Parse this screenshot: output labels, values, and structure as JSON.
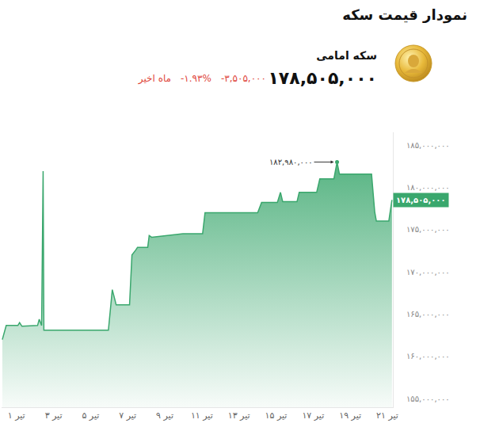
{
  "header": {
    "title": "نمودار قیمت سکه",
    "coin_name": "سکه امامی",
    "price": "۱۷۸,۵۰۵,۰۰۰",
    "change": "-۳,۵۰۵,۰۰۰",
    "change_percent": "-۱.۹۳%",
    "period": "ماه اخیر"
  },
  "chart_data": {
    "type": "line",
    "color": "#3aa76d",
    "grid": false,
    "x": [
      0.24,
      0.45,
      1.08,
      1.17,
      1.3,
      2.14,
      2.23,
      2.36,
      2.44,
      2.48,
      5.96,
      6.17,
      6.3,
      6.38,
      7.1,
      7.23,
      7.44,
      7.53,
      8.08,
      8.16,
      8.29,
      9.98,
      11.04,
      11.17,
      14.01,
      14.22,
      15.07,
      15.24,
      15.36,
      16.13,
      16.25,
      17.19,
      17.36,
      18.12,
      18.29,
      18.42,
      20.15,
      20.32,
      20.41,
      21.08,
      21.25
    ],
    "values": [
      162000000,
      163660000,
      163660000,
      164000000,
      163570000,
      163660000,
      164400000,
      163660000,
      181900000,
      163100000,
      163100000,
      167900000,
      166800000,
      166100000,
      166100000,
      172000000,
      172600000,
      172900000,
      172900000,
      174300000,
      174100000,
      174500000,
      174500000,
      177000000,
      177000000,
      178200000,
      178200000,
      179400000,
      178300000,
      178300000,
      179400000,
      179400000,
      181000000,
      181000000,
      182980000,
      181550000,
      181550000,
      177100000,
      176000000,
      176000000,
      178505000
    ],
    "xlim": [
      0.2,
      21.3
    ],
    "ylim": [
      154000000,
      186500000
    ],
    "xticks": [
      {
        "value": 1,
        "label": "۱ تیر"
      },
      {
        "value": 3,
        "label": "۳ تیر"
      },
      {
        "value": 5,
        "label": "۵ تیر"
      },
      {
        "value": 7,
        "label": "۷ تیر"
      },
      {
        "value": 9,
        "label": "۹ تیر"
      },
      {
        "value": 11,
        "label": "۱۱ تیر"
      },
      {
        "value": 13,
        "label": "۱۳ تیر"
      },
      {
        "value": 15,
        "label": "۱۵ تیر"
      },
      {
        "value": 17,
        "label": "۱۷ تیر"
      },
      {
        "value": 19,
        "label": "۱۹ تیر"
      },
      {
        "value": 21,
        "label": "۲۱ تیر"
      }
    ],
    "yticks": [
      {
        "value": 155000000,
        "label": "۱۵۵,۰۰۰,۰۰۰"
      },
      {
        "value": 160000000,
        "label": "۱۶۰,۰۰۰,۰۰۰"
      },
      {
        "value": 165000000,
        "label": "۱۶۵,۰۰۰,۰۰۰"
      },
      {
        "value": 170000000,
        "label": "۱۷۰,۰۰۰,۰۰۰"
      },
      {
        "value": 175000000,
        "label": "۱۷۵,۰۰۰,۰۰۰"
      },
      {
        "value": 180000000,
        "label": "۱۸۰,۰۰۰,۰۰۰"
      },
      {
        "value": 185000000,
        "label": "۱۸۵,۰۰۰,۰۰۰"
      }
    ],
    "annotations": [
      {
        "text": "۱۸۲,۹۸۰,۰۰۰",
        "x": 18.29,
        "y": 182980000
      },
      {
        "text": "۱۷۸,۵۰۵,۰۰۰",
        "x": 21.25,
        "y": 178505000
      }
    ]
  }
}
